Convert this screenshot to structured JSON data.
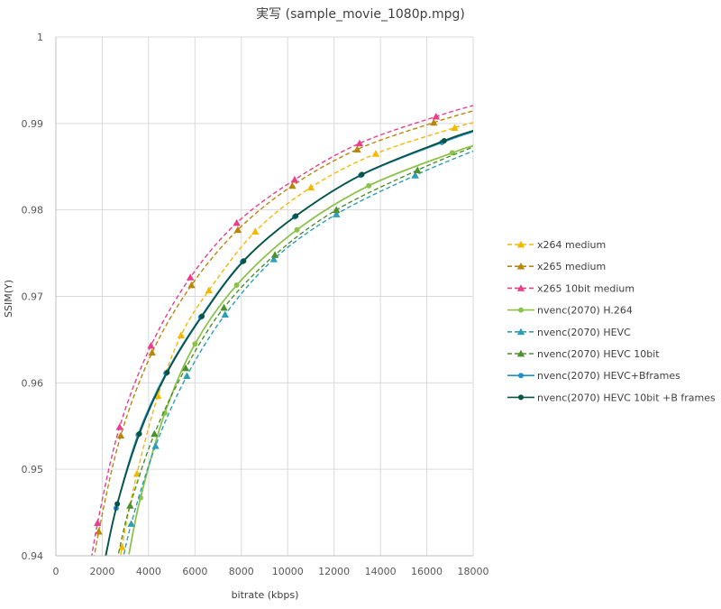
{
  "chart_data": {
    "type": "line",
    "title": "実写 (sample_movie_1080p.mpg)",
    "xlabel": "bitrate (kbps)",
    "ylabel": "SSIM(Y)",
    "xlim": [
      0,
      18000
    ],
    "ylim": [
      0.94,
      1.0
    ],
    "x_ticks": [
      "0",
      "2000",
      "4000",
      "6000",
      "8000",
      "10000",
      "12000",
      "14000",
      "16000",
      "18000"
    ],
    "y_ticks": [
      "0.94",
      "0.95",
      "0.96",
      "0.97",
      "0.98",
      "0.99",
      "1"
    ],
    "grid": true,
    "legend_position": "right",
    "series": [
      {
        "name": "x264 medium",
        "color": "#F5B800",
        "dash": true,
        "marker": "triangle",
        "x": [
          2850,
          3500,
          4400,
          5400,
          6600,
          8600,
          11000,
          13800,
          17200
        ],
        "y": [
          0.941,
          0.9495,
          0.9585,
          0.9655,
          0.9707,
          0.9775,
          0.9826,
          0.9865,
          0.9895
        ]
      },
      {
        "name": "x265 medium",
        "color": "#B8860B",
        "dash": true,
        "marker": "triangle",
        "x": [
          1850,
          2800,
          4150,
          5850,
          7850,
          10200,
          13000,
          16300
        ],
        "y": [
          0.9428,
          0.9539,
          0.9635,
          0.9713,
          0.9777,
          0.9828,
          0.987,
          0.9901
        ]
      },
      {
        "name": "x265 10bit medium",
        "color": "#E83E8C",
        "dash": true,
        "marker": "triangle",
        "x": [
          1800,
          2750,
          4100,
          5800,
          7800,
          10300,
          13100,
          16400
        ],
        "y": [
          0.9438,
          0.9549,
          0.9643,
          0.9722,
          0.9785,
          0.9835,
          0.9877,
          0.9908
        ]
      },
      {
        "name": "nvenc(2070) H.264",
        "color": "#8BC34A",
        "dash": false,
        "marker": "circle",
        "x": [
          3650,
          4700,
          6000,
          7800,
          10400,
          13500,
          17100
        ],
        "y": [
          0.9467,
          0.9565,
          0.9645,
          0.9713,
          0.9777,
          0.9828,
          0.9866
        ]
      },
      {
        "name": "nvenc(2070) HEVC",
        "color": "#2A9FB5",
        "dash": true,
        "marker": "triangle",
        "x": [
          3250,
          4300,
          5650,
          7300,
          9400,
          12100,
          15500
        ],
        "y": [
          0.9437,
          0.9527,
          0.9608,
          0.9679,
          0.9743,
          0.9795,
          0.984
        ]
      },
      {
        "name": "nvenc(2070) HEVC 10bit",
        "color": "#4E8F2F",
        "dash": true,
        "marker": "triangle",
        "x": [
          3200,
          4250,
          5600,
          7250,
          9450,
          12100,
          15600
        ],
        "y": [
          0.9458,
          0.9541,
          0.9617,
          0.9687,
          0.9748,
          0.98,
          0.9846
        ]
      },
      {
        "name": "nvenc(2070) HEVC+Bframes",
        "color": "#1E90C8",
        "dash": false,
        "marker": "circle",
        "x": [
          2600,
          3550,
          4750,
          6250,
          8050,
          10300,
          13150,
          16650
        ],
        "y": [
          0.9455,
          0.954,
          0.9611,
          0.9676,
          0.974,
          0.9792,
          0.984,
          0.9878
        ]
      },
      {
        "name": "nvenc(2070) HEVC 10bit +B frames",
        "color": "#0B5345",
        "dash": false,
        "marker": "circle",
        "x": [
          2650,
          3600,
          4800,
          6300,
          8100,
          10350,
          13200,
          16750
        ],
        "y": [
          0.946,
          0.9541,
          0.9612,
          0.9677,
          0.9741,
          0.9793,
          0.9841,
          0.988
        ]
      }
    ]
  }
}
